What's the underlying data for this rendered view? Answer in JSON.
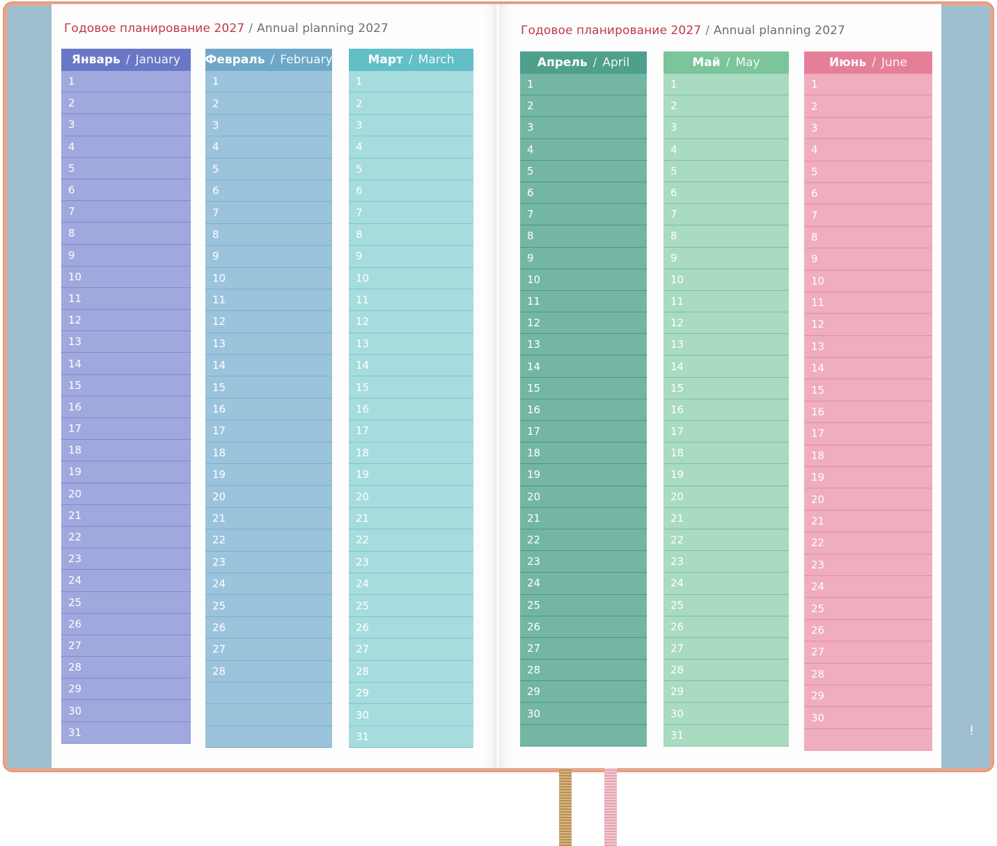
{
  "left_page": {
    "title_ru": "Годовое планирование 2027",
    "title_sep": "/",
    "title_en": "Annual planning 2027"
  },
  "right_page": {
    "title_ru": "Годовое планирование 2027",
    "title_sep": "/",
    "title_en": "Annual planning 2027"
  },
  "months": [
    {
      "ru": "Январь",
      "sep": "/",
      "en": "January",
      "days": 31,
      "header_color": "#6878c6",
      "body_color": "#a0a8de",
      "line_color": "#7f8ad0"
    },
    {
      "ru": "Февраль",
      "sep": "/",
      "en": "February",
      "days": 28,
      "header_color": "#6fa7c8",
      "body_color": "#9cc3dc",
      "line_color": "#7daecd"
    },
    {
      "ru": "Март",
      "sep": "/",
      "en": "March",
      "days": 31,
      "header_color": "#62bfc5",
      "body_color": "#a6dcde",
      "line_color": "#7bc6cb"
    },
    {
      "ru": "Апрель",
      "sep": "/",
      "en": "April",
      "days": 30,
      "header_color": "#4f9f8c",
      "body_color": "#74b6a4",
      "line_color": "#4f9482"
    },
    {
      "ru": "Май",
      "sep": "/",
      "en": "May",
      "days": 31,
      "header_color": "#7cc49a",
      "body_color": "#a8dbc0",
      "line_color": "#7fbf9a"
    },
    {
      "ru": "Июнь",
      "sep": "/",
      "en": "June",
      "days": 30,
      "header_color": "#e57f97",
      "body_color": "#efadbd",
      "line_color": "#de8ea2"
    }
  ],
  "ribbons": {
    "gold": "#c89a5a",
    "pink": "#f2b3c0"
  },
  "corner_mark": "!"
}
